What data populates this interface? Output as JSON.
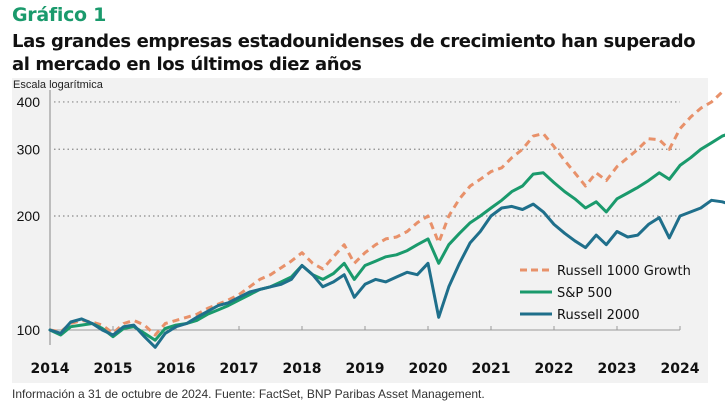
{
  "header": {
    "kicker": "Gráfico 1",
    "title": "Las grandes empresas estadounidenses de crecimiento han superado al mercado en los últimos diez años"
  },
  "footer": {
    "source": "Información a 31 de octubre de 2024. Fuente: FactSet, BNP Paribas Asset Management."
  },
  "chart_data": {
    "type": "line",
    "title": "Las grandes empresas estadounidenses de crecimiento han superado al mercado en los últimos diez años",
    "ylabel": "Escala logarítmica",
    "xlabel": "",
    "yscale": "log",
    "ylim": [
      85,
      430
    ],
    "xlim": [
      2014,
      2024.9
    ],
    "yticks": [
      100,
      200,
      300,
      400
    ],
    "xticks": [
      "2014",
      "2015",
      "2016",
      "2017",
      "2018",
      "2019",
      "2020",
      "2021",
      "2022",
      "2023",
      "2024"
    ],
    "grid": "horizontal-dotted",
    "legend_position": "bottom-right",
    "x": [
      2014.0,
      2014.17,
      2014.33,
      2014.5,
      2014.67,
      2014.83,
      2015.0,
      2015.17,
      2015.33,
      2015.5,
      2015.67,
      2015.83,
      2016.0,
      2016.17,
      2016.33,
      2016.5,
      2016.67,
      2016.83,
      2017.0,
      2017.17,
      2017.33,
      2017.5,
      2017.67,
      2017.83,
      2018.0,
      2018.17,
      2018.33,
      2018.5,
      2018.67,
      2018.83,
      2019.0,
      2019.17,
      2019.33,
      2019.5,
      2019.67,
      2019.83,
      2020.0,
      2020.17,
      2020.33,
      2020.5,
      2020.67,
      2020.83,
      2021.0,
      2021.17,
      2021.33,
      2021.5,
      2021.67,
      2021.83,
      2022.0,
      2022.17,
      2022.33,
      2022.5,
      2022.67,
      2022.83,
      2023.0,
      2023.17,
      2023.33,
      2023.5,
      2023.67,
      2023.83,
      2024.0,
      2024.17,
      2024.33,
      2024.5,
      2024.67,
      2024.83
    ],
    "series": [
      {
        "name": "Russell 1000 Growth",
        "color": "#e8916a",
        "style": "dashed",
        "values": [
          100,
          99,
          104,
          106,
          105,
          103,
          98,
          104,
          106,
          103,
          97,
          104,
          106,
          108,
          110,
          114,
          117,
          120,
          124,
          130,
          136,
          140,
          146,
          152,
          160,
          150,
          145,
          156,
          168,
          150,
          160,
          168,
          174,
          176,
          182,
          192,
          200,
          170,
          200,
          222,
          240,
          250,
          262,
          268,
          285,
          300,
          325,
          330,
          305,
          280,
          260,
          240,
          260,
          248,
          270,
          285,
          300,
          320,
          318,
          300,
          340,
          365,
          385,
          400,
          425,
          432
        ]
      },
      {
        "name": "S&P 500",
        "color": "#1a9a6c",
        "style": "solid",
        "values": [
          100,
          97,
          102,
          103,
          104,
          101,
          96,
          101,
          102,
          98,
          94,
          101,
          103,
          104,
          106,
          110,
          113,
          116,
          120,
          124,
          128,
          130,
          134,
          138,
          148,
          140,
          136,
          141,
          150,
          136,
          148,
          152,
          156,
          158,
          162,
          168,
          174,
          150,
          168,
          180,
          192,
          200,
          210,
          220,
          232,
          240,
          258,
          260,
          245,
          232,
          222,
          210,
          218,
          205,
          222,
          230,
          238,
          248,
          260,
          250,
          272,
          285,
          300,
          312,
          325,
          332
        ]
      },
      {
        "name": "Russell 2000",
        "color": "#1f6f8b",
        "style": "solid",
        "values": [
          100,
          98,
          105,
          107,
          104,
          100,
          97,
          102,
          103,
          96,
          90,
          98,
          102,
          104,
          108,
          112,
          116,
          118,
          122,
          126,
          128,
          130,
          132,
          136,
          148,
          140,
          130,
          134,
          140,
          122,
          132,
          136,
          134,
          138,
          142,
          140,
          150,
          108,
          130,
          150,
          170,
          182,
          200,
          210,
          212,
          208,
          215,
          205,
          190,
          180,
          172,
          165,
          178,
          168,
          182,
          176,
          178,
          190,
          198,
          175,
          200,
          205,
          210,
          220,
          218,
          214
        ]
      }
    ]
  }
}
